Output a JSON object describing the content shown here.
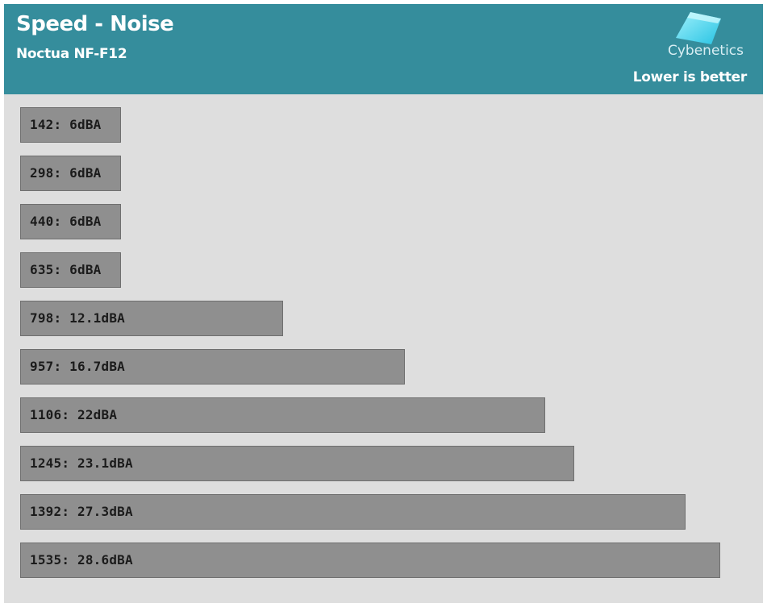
{
  "header": {
    "title": "Speed - Noise",
    "subtitle": "Noctua NF-F12",
    "brand": "Cybenetics",
    "note": "Lower is better"
  },
  "colors": {
    "header_bg": "#358d9c",
    "plot_bg": "#dedede",
    "bar_fill": "#8f8f8f",
    "logo_accent": "#35d3ef"
  },
  "chart_data": {
    "type": "bar",
    "orientation": "horizontal",
    "title": "Speed - Noise",
    "subtitle": "Noctua NF-F12",
    "categories": [
      "142",
      "298",
      "440",
      "635",
      "798",
      "957",
      "1106",
      "1245",
      "1392",
      "1535"
    ],
    "values": [
      6,
      6,
      6,
      6,
      12.1,
      16.7,
      22,
      23.1,
      27.3,
      28.6
    ],
    "unit": "dBA",
    "labels": [
      "142: 6dBA",
      "298: 6dBA",
      "440: 6dBA",
      "635: 6dBA",
      "798: 12.1dBA",
      "957: 16.7dBA",
      "1106: 22dBA",
      "1245: 23.1dBA",
      "1392: 27.3dBA",
      "1535: 28.6dBA"
    ],
    "annotation": "Lower is better",
    "grid": false,
    "legend": "none"
  }
}
